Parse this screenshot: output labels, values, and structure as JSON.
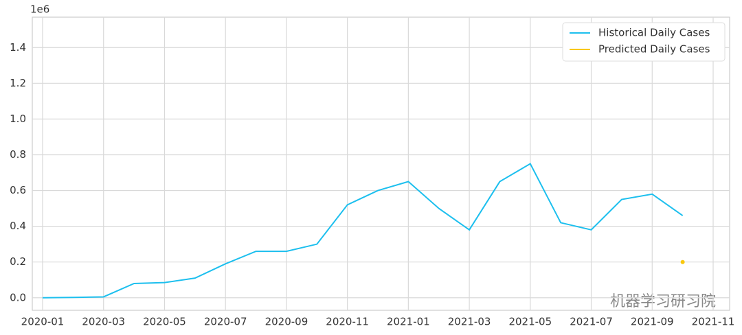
{
  "chart_data": {
    "type": "line",
    "y_offset_label": "1e6",
    "watermark": "机器学习研习院",
    "grid": true,
    "legend": "upper right",
    "xlim": [
      "2020-01",
      "2021-11"
    ],
    "xticks": [
      "2020-01",
      "2020-03",
      "2020-05",
      "2020-07",
      "2020-09",
      "2020-11",
      "2021-01",
      "2021-03",
      "2021-05",
      "2021-07",
      "2021-09",
      "2021-11"
    ],
    "ylim": [
      -0.07,
      1.57
    ],
    "yticks": [
      {
        "value": 0,
        "label": "0.0"
      },
      0.2,
      0.4,
      0.6,
      0.8,
      {
        "value": 1,
        "label": "1.0"
      },
      1.2,
      1.4
    ],
    "series": [
      {
        "name": "Historical Daily Cases",
        "color": "#1cbfee",
        "x": [
          "2020-01",
          "2020-02",
          "2020-03",
          "2020-04",
          "2020-05",
          "2020-06",
          "2020-07",
          "2020-08",
          "2020-09",
          "2020-10",
          "2020-11",
          "2020-12",
          "2021-01",
          "2021-02",
          "2021-03",
          "2021-04",
          "2021-05",
          "2021-06",
          "2021-07",
          "2021-08",
          "2021-09",
          "2021-10"
        ],
        "values": [
          0,
          0.002,
          0.005,
          0.08,
          0.085,
          0.11,
          0.19,
          0.26,
          0.26,
          0.3,
          0.52,
          0.6,
          0.65,
          0.5,
          0.38,
          0.65,
          0.75,
          0.42,
          0.38,
          0.55,
          0.58,
          0.46
        ]
      },
      {
        "name": "Predicted Daily Cases",
        "color": "#f9c80e",
        "x": [
          "2021-10"
        ],
        "values": [
          0.2
        ]
      }
    ]
  }
}
